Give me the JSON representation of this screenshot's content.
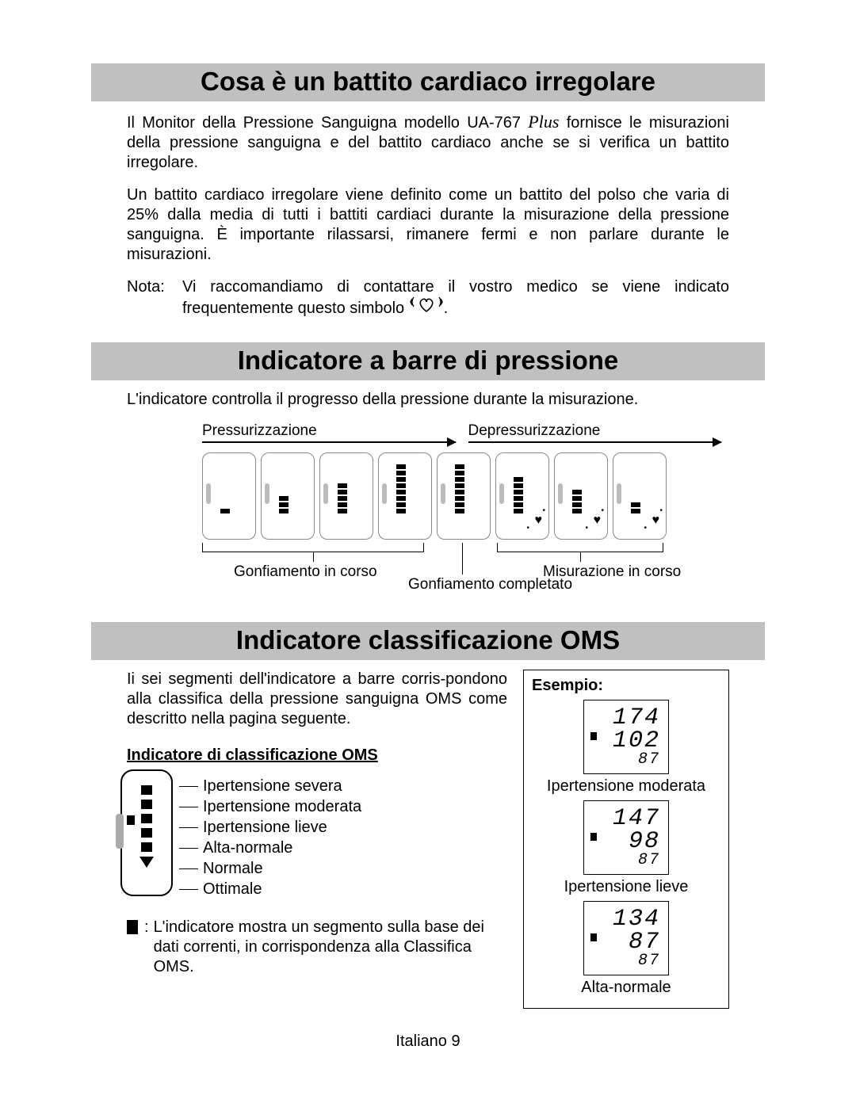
{
  "page": {
    "background_color": "#ffffff",
    "header_bg": "#c0c0c0",
    "text_color": "#000000",
    "footer": "Italiano   9"
  },
  "section1": {
    "title": "Cosa è un battito cardiaco irregolare",
    "para1_a": "Il Monitor della Pressione Sanguigna modello UA-767 ",
    "para1_plus": "Plus",
    "para1_b": "  fornisce le misurazioni della pressione sanguigna e del battito cardiaco anche se si verifica un battito irregolare.",
    "para2": "Un battito cardiaco irregolare viene definito come un battito del polso che varia di 25% dalla media di tutti i battiti cardiaci durante  la misurazione della pressione sanguigna. È importante rilassarsi, rimanere fermi e non parlare durante le misurazioni.",
    "note_label": "Nota:",
    "note_a": "Vi raccomandiamo di contattare il vostro medico se viene indicato frequentemente questo simbolo ",
    "note_end": "."
  },
  "section2": {
    "title": "Indicatore a barre di pressione",
    "intro": "L'indicatore controlla il progresso della pressione durante la misurazione.",
    "label_press": "Pressurizzazione",
    "label_depress": "Depressurizzazione",
    "label_inflate": "Gonfiamento in corso",
    "label_complete": "Gonfiamento completato",
    "label_measure": "Misurazione in corso",
    "devices": {
      "segment_counts": [
        1,
        3,
        5,
        8,
        8,
        6,
        4,
        2
      ],
      "show_heart_from_index": 5
    }
  },
  "section3": {
    "title": "Indicatore classificazione OMS",
    "para": "Ii sei segmenti dell'indicatore a barre corris-pondono alla classifica della pressione sanguigna OMS come descritto nella pagina seguente.",
    "subhead": "Indicatore di classificazione OMS",
    "levels": [
      "Ipertensione severa",
      "Ipertensione moderata",
      "Ipertensione lieve",
      "Alta-normale",
      "Normale",
      "Ottimale"
    ],
    "note_text": "L'indicatore mostra un segmento sulla base dei dati correnti, in corrispondenza alla Classifica OMS.",
    "example": {
      "title": "Esempio:",
      "items": [
        {
          "sys": "174",
          "dia": "102",
          "pul": "87",
          "label": "Ipertensione moderata"
        },
        {
          "sys": "147",
          "dia": "98",
          "pul": "87",
          "label": "Ipertensione lieve"
        },
        {
          "sys": "134",
          "dia": "87",
          "pul": "87",
          "label": "Alta-normale"
        }
      ]
    }
  }
}
